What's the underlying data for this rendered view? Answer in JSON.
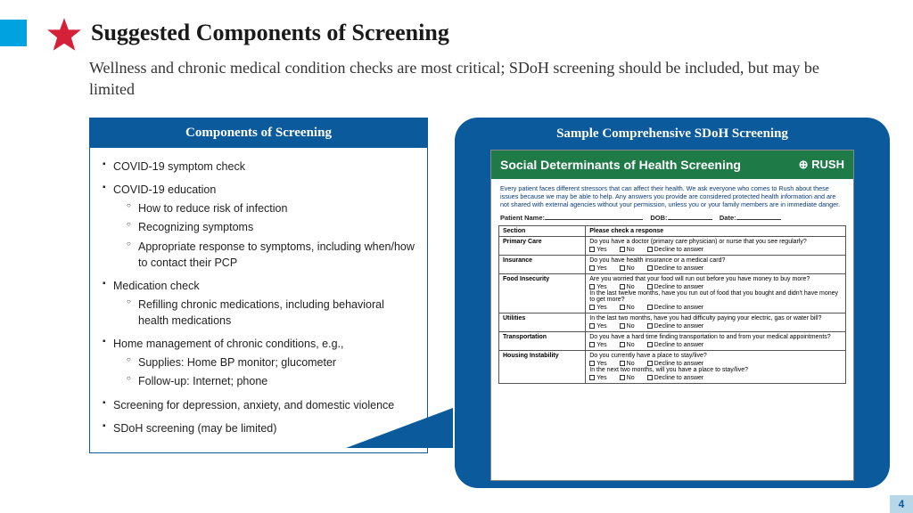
{
  "colors": {
    "side_accent": "#00a3e0",
    "star": "#d6203a",
    "header_blue": "#0a5a9c",
    "form_green": "#1e7a47",
    "page_num_bg": "#b8d8ea"
  },
  "title": "Suggested Components of Screening",
  "subtitle": "Wellness and chronic medical condition checks are most critical; SDoH screening should be included, but may be limited",
  "left_box": {
    "header": "Components of Screening",
    "items": [
      {
        "text": "COVID-19 symptom check"
      },
      {
        "text": "COVID-19 education",
        "sub": [
          "How to reduce risk of infection",
          "Recognizing symptoms",
          "Appropriate response to symptoms, including when/how to contact their PCP"
        ]
      },
      {
        "text": "Medication check",
        "sub": [
          "Refilling chronic medications, including behavioral health medications"
        ]
      },
      {
        "text": "Home management of chronic conditions, e.g.,",
        "sub": [
          "Supplies: Home BP monitor; glucometer",
          "Follow-up: Internet; phone"
        ]
      },
      {
        "text": "Screening for depression, anxiety, and domestic violence"
      },
      {
        "text": "SDoH screening (may be limited)"
      }
    ]
  },
  "callout": {
    "header": "Sample Comprehensive SDoH Screening",
    "form": {
      "title": "Social Determinants of Health Screening",
      "logo": "⊕ RUSH",
      "intro": "Every patient faces different stressors that can affect their health. We ask everyone who comes to Rush about these issues because we may be able to help. Any answers you provide are considered protected health information and are not shared with external agencies without your permission, unless you or your family members are in immediate danger.",
      "patient_fields": {
        "name": "Patient Name:",
        "dob": "DOB:",
        "date": "Date:"
      },
      "table_header": [
        "Section",
        "Please check a response"
      ],
      "check_options": [
        "Yes",
        "No",
        "Decline to answer"
      ],
      "rows": [
        {
          "section": "Primary Care",
          "q": "Do you have a doctor (primary care physician) or nurse that you see regularly?"
        },
        {
          "section": "Insurance",
          "q": "Do you have health insurance or a medical card?"
        },
        {
          "section": "Food Insecurity",
          "q": "Are you worried that your food will run out before you have money to buy more?",
          "q2": "In the last twelve months, have you run out of food that you bought and didn't have money to get more?"
        },
        {
          "section": "Utilities",
          "q": "In the last two months, have you had difficulty paying your electric, gas or water bill?"
        },
        {
          "section": "Transportation",
          "q": "Do you have a hard time finding transportation to and from your medical appointments?"
        },
        {
          "section": "Housing Instability",
          "q": "Do you currently have a place to stay/live?",
          "q2": "In the next two months, will you have a place to stay/live?"
        }
      ]
    }
  },
  "page_number": "4"
}
